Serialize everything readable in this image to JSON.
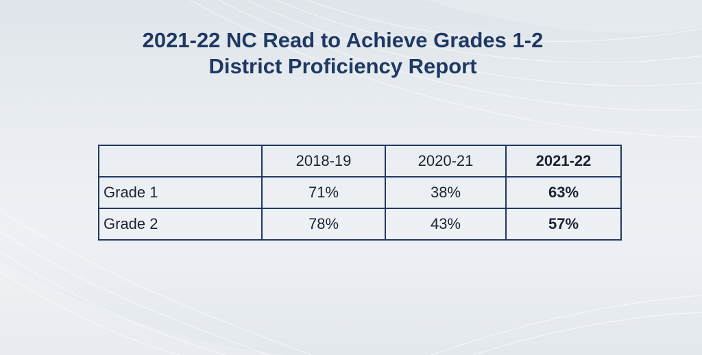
{
  "title": {
    "line1": "2021-22 NC Read to Achieve Grades 1-2",
    "line2": "District Proficiency Report"
  },
  "table": {
    "corner": "",
    "columns": [
      "2018-19",
      "2020-21",
      "2021-22"
    ],
    "rows": [
      {
        "label": "Grade 1",
        "values": [
          "71%",
          "38%",
          "63%"
        ]
      },
      {
        "label": "Grade 2",
        "values": [
          "78%",
          "43%",
          "57%"
        ]
      }
    ],
    "emphasized_column": "2021-22"
  },
  "colors": {
    "title": "#1f3864",
    "table_border": "#1f3864",
    "text": "#1c2233"
  }
}
